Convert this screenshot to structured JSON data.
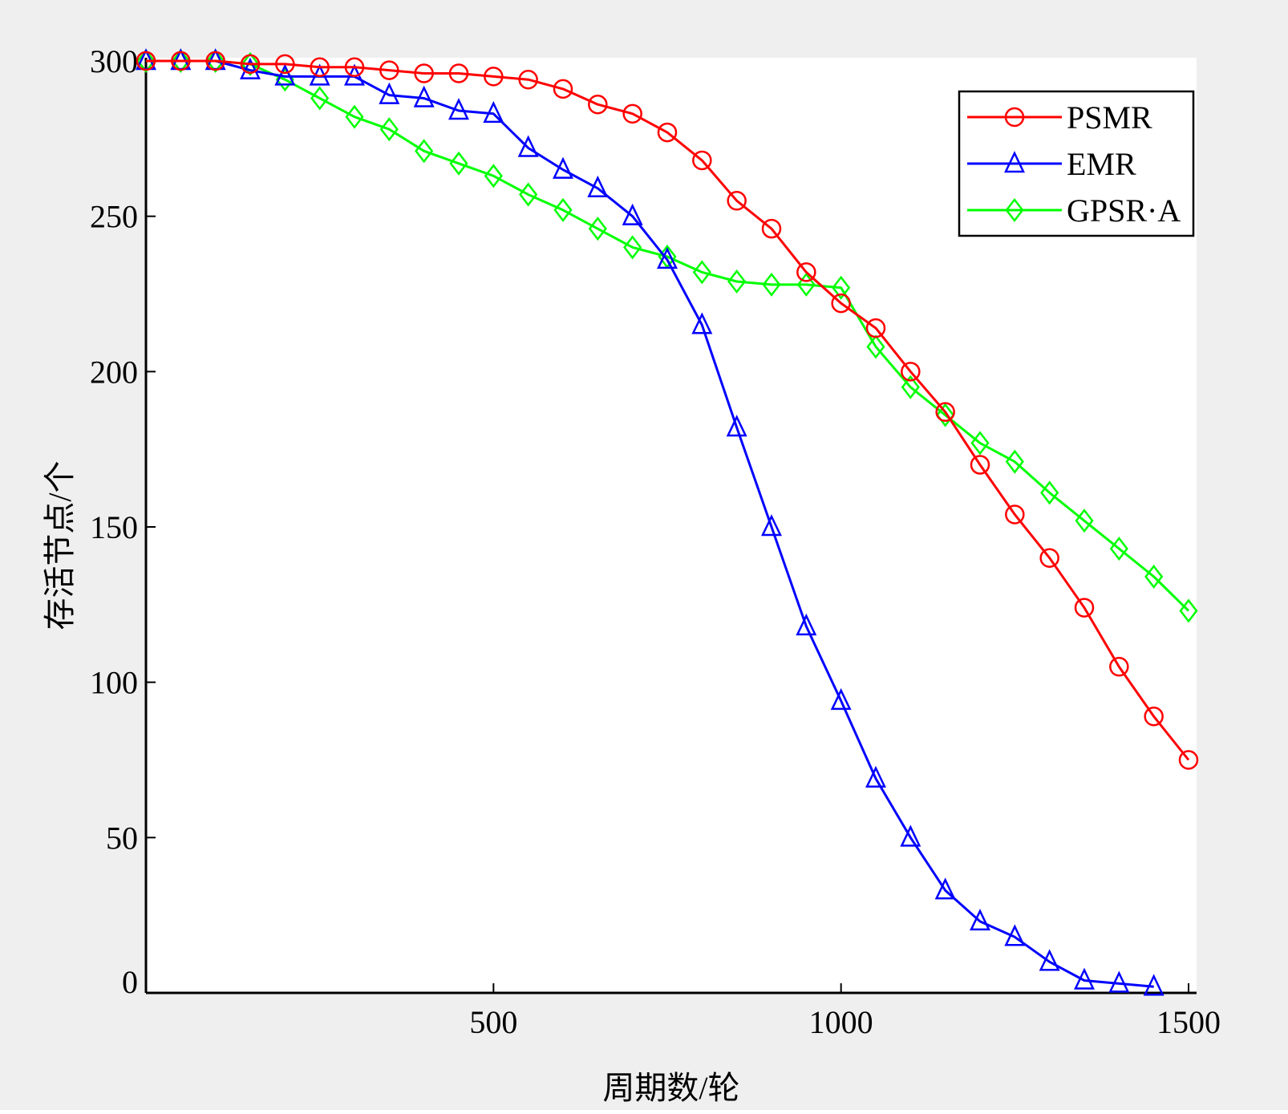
{
  "chart_data": {
    "type": "line",
    "xlabel": "周期数/轮",
    "ylabel": "存活节点/个",
    "xlim": [
      0,
      1500
    ],
    "ylim": [
      0,
      300
    ],
    "xticks": [
      500,
      1000,
      1500
    ],
    "xtick_labels": [
      "500",
      "1000",
      "1500"
    ],
    "yticks": [
      0,
      50,
      100,
      150,
      200,
      250,
      300
    ],
    "ytick_labels": [
      "0",
      "50",
      "100",
      "150",
      "200",
      "250",
      "300"
    ],
    "grid": false,
    "legend_position": "top-right",
    "series": [
      {
        "name": "PSMR",
        "color": "#ff0000",
        "marker": "circle",
        "x": [
          0,
          50,
          100,
          150,
          200,
          250,
          300,
          350,
          400,
          450,
          500,
          550,
          600,
          650,
          700,
          750,
          800,
          850,
          900,
          950,
          1000,
          1050,
          1100,
          1150,
          1200,
          1250,
          1300,
          1350,
          1400,
          1450,
          1500
        ],
        "y": [
          300,
          300,
          300,
          299,
          299,
          298,
          298,
          297,
          296,
          296,
          295,
          294,
          291,
          286,
          283,
          277,
          268,
          255,
          246,
          232,
          222,
          214,
          200,
          187,
          170,
          154,
          140,
          124,
          105,
          89,
          75
        ]
      },
      {
        "name": "EMR",
        "color": "#0000ff",
        "marker": "triangle",
        "x": [
          0,
          50,
          100,
          150,
          200,
          250,
          300,
          350,
          400,
          450,
          500,
          550,
          600,
          650,
          700,
          750,
          800,
          850,
          900,
          950,
          1000,
          1050,
          1100,
          1150,
          1200,
          1250,
          1300,
          1350,
          1400,
          1450
        ],
        "y": [
          300,
          300,
          300,
          297,
          295,
          295,
          295,
          289,
          288,
          284,
          283,
          272,
          265,
          259,
          250,
          236,
          215,
          182,
          150,
          118,
          94,
          69,
          50,
          33,
          23,
          18,
          10,
          4,
          3,
          2
        ]
      },
      {
        "name": "GPSR·A",
        "color": "#00ff00",
        "marker": "diamond",
        "x": [
          0,
          50,
          100,
          150,
          200,
          250,
          300,
          350,
          400,
          450,
          500,
          550,
          600,
          650,
          700,
          750,
          800,
          850,
          900,
          950,
          1000,
          1050,
          1100,
          1150,
          1200,
          1250,
          1300,
          1350,
          1400,
          1450,
          1500
        ],
        "y": [
          300,
          300,
          300,
          299,
          294,
          288,
          282,
          278,
          271,
          267,
          263,
          257,
          252,
          246,
          240,
          237,
          232,
          229,
          228,
          228,
          227,
          208,
          195,
          186,
          177,
          171,
          161,
          152,
          143,
          134,
          123
        ]
      }
    ]
  }
}
